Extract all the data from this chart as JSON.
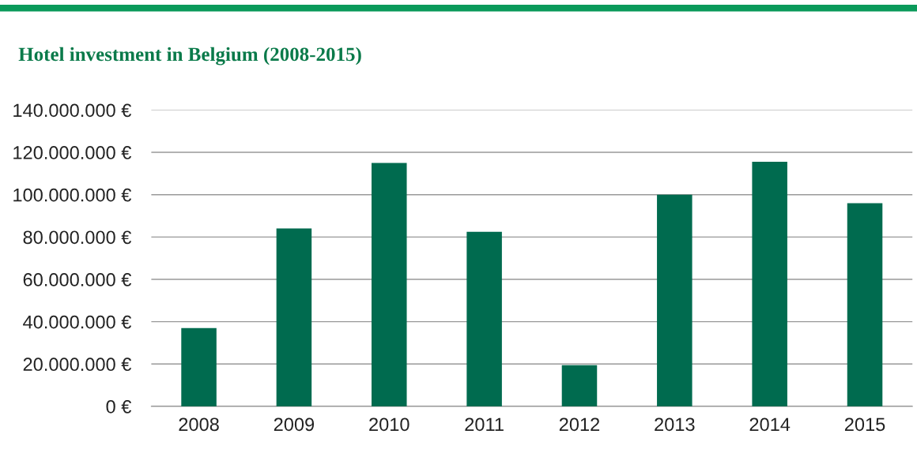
{
  "chart_data": {
    "type": "bar",
    "title": "Hotel investment in Belgium (2008-2015)",
    "categories": [
      "2008",
      "2009",
      "2010",
      "2011",
      "2012",
      "2013",
      "2014",
      "2015"
    ],
    "values": [
      37000000,
      84000000,
      115000000,
      82500000,
      19500000,
      100000000,
      115500000,
      96000000
    ],
    "color": "#006b4f",
    "ylim": [
      0,
      140000000
    ],
    "yticks": [
      {
        "value": 0,
        "label": "0 €"
      },
      {
        "value": 20000000,
        "label": "20.000.000 €"
      },
      {
        "value": 40000000,
        "label": "40.000.000 €"
      },
      {
        "value": 60000000,
        "label": "60.000.000 €"
      },
      {
        "value": 80000000,
        "label": "80.000.000 €"
      },
      {
        "value": 100000000,
        "label": "100.000.000 €"
      },
      {
        "value": 120000000,
        "label": "120.000.000 €"
      },
      {
        "value": 140000000,
        "label": "140.000.000 €"
      }
    ],
    "grid": "y",
    "legend": false
  }
}
